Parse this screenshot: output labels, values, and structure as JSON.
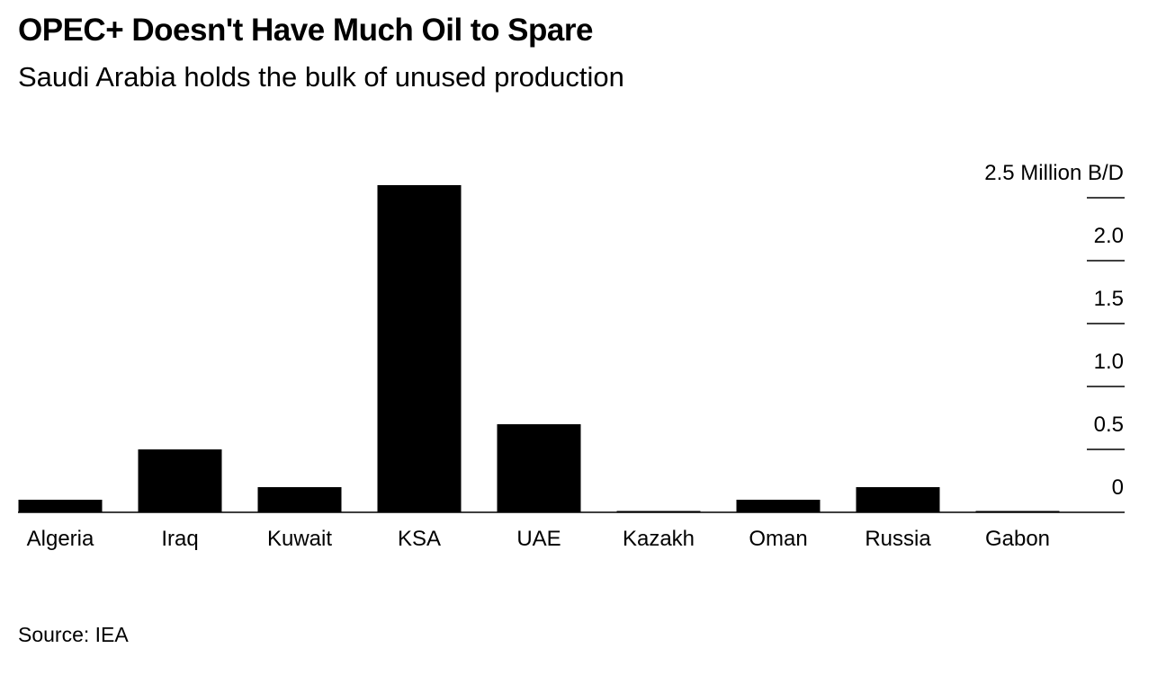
{
  "chart_data": {
    "type": "bar",
    "title": "OPEC+ Doesn't Have Much Oil to Spare",
    "subtitle": "Saudi Arabia holds the bulk of unused production",
    "source": "Source: IEA",
    "categories": [
      "Algeria",
      "Iraq",
      "Kuwait",
      "KSA",
      "UAE",
      "Kazakh",
      "Oman",
      "Russia",
      "Gabon"
    ],
    "values": [
      0.1,
      0.5,
      0.2,
      2.6,
      0.7,
      0.0,
      0.1,
      0.2,
      0.0
    ],
    "ylim": [
      0,
      2.5
    ],
    "yticks": [
      0,
      0.5,
      1.0,
      1.5,
      2.0,
      2.5
    ],
    "ytick_labels": [
      "0",
      "0.5",
      "1.0",
      "1.5",
      "2.0",
      "2.5 Million B/D"
    ],
    "ylabel": "",
    "xlabel": "",
    "grid": false,
    "colors": {
      "bar": "#000000",
      "axis": "#000000"
    }
  }
}
